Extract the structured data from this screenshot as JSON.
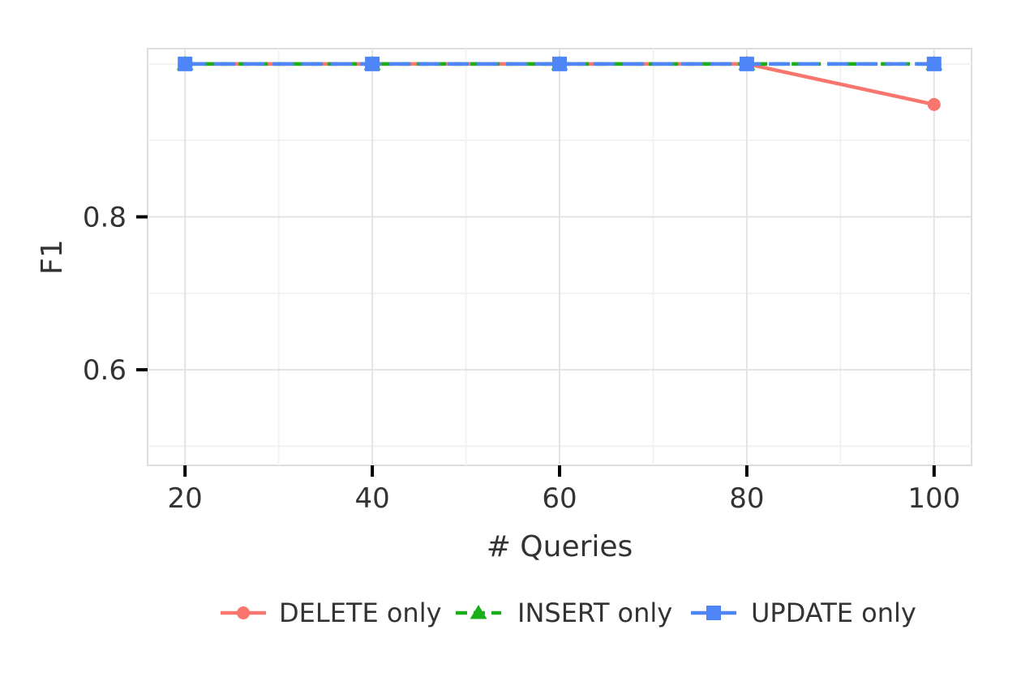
{
  "chart_data": {
    "type": "line",
    "title": "",
    "xlabel": "# Queries",
    "ylabel": "F1",
    "x": [
      20,
      40,
      60,
      80,
      100
    ],
    "x_ticks": [
      "20",
      "40",
      "60",
      "80",
      "100"
    ],
    "y_ticks": [
      "0.6",
      "0.8"
    ],
    "y_tick_values": [
      0.6,
      0.8
    ],
    "xlim": [
      16,
      104
    ],
    "ylim": [
      0.475,
      1.02
    ],
    "grid": true,
    "legend_position": "bottom",
    "series": [
      {
        "name": "DELETE only",
        "values": [
          1.0,
          1.0,
          1.0,
          1.0,
          0.947
        ],
        "color": "#F8766D",
        "marker": "circle",
        "dash": "solid"
      },
      {
        "name": "INSERT only",
        "values": [
          1.0,
          1.0,
          1.0,
          1.0,
          1.0
        ],
        "color": "#1AAF1A",
        "marker": "triangle",
        "dash": "dashed"
      },
      {
        "name": "UPDATE only",
        "values": [
          1.0,
          1.0,
          1.0,
          1.0,
          1.0
        ],
        "color": "#4F86F7",
        "marker": "square",
        "dash": "longdash"
      }
    ]
  }
}
